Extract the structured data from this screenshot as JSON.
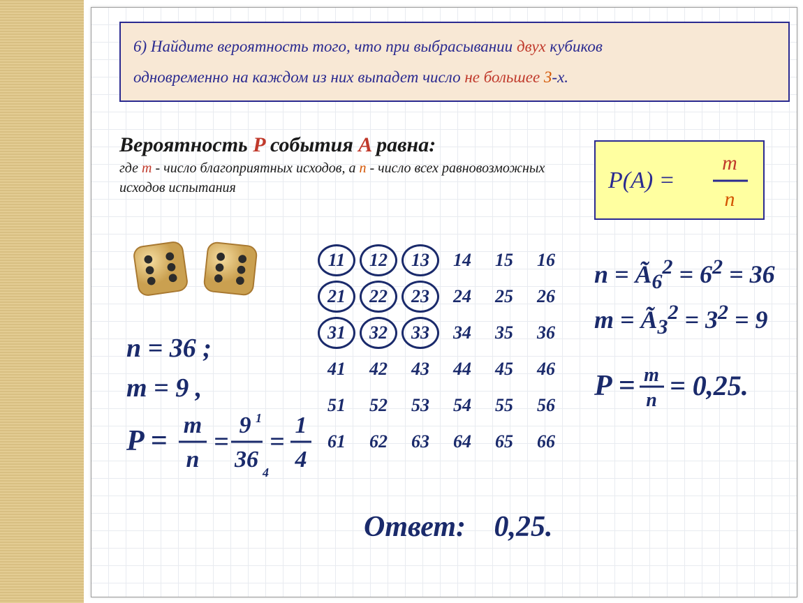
{
  "problem": {
    "number": "6)",
    "text_before_red1": "Найдите вероятность того, что при выбрасывании ",
    "red1": "двух",
    "text_after_red1": " кубиков",
    "line2_before": "одновременно на каждом из них выпадет число ",
    "red2": "не большее",
    "orange": " 3",
    "after_orange": "-х."
  },
  "theory": {
    "line1_a": "Вероятность ",
    "line1_p": "P",
    "line1_b": " события ",
    "line1_aa": "A",
    "line1_c": " равна:",
    "sub_a": "где ",
    "sub_m": "m",
    "sub_b": " - число благоприятных исходов, а ",
    "sub_n": "n",
    "sub_c": " - число всех равновозможных исходов испытания"
  },
  "formula": {
    "left": "P(A)  =",
    "num": "m",
    "den": "n"
  },
  "outcome_grid": {
    "rows": [
      [
        "11",
        "12",
        "13",
        "14",
        "15",
        "16"
      ],
      [
        "21",
        "22",
        "23",
        "24",
        "25",
        "26"
      ],
      [
        "31",
        "32",
        "33",
        "34",
        "35",
        "36"
      ],
      [
        "41",
        "42",
        "43",
        "44",
        "45",
        "46"
      ],
      [
        "51",
        "52",
        "53",
        "54",
        "55",
        "56"
      ],
      [
        "61",
        "62",
        "63",
        "64",
        "65",
        "66"
      ]
    ],
    "circled_coords": [
      [
        0,
        0
      ],
      [
        0,
        1
      ],
      [
        0,
        2
      ],
      [
        1,
        0
      ],
      [
        1,
        1
      ],
      [
        1,
        2
      ],
      [
        2,
        0
      ],
      [
        2,
        1
      ],
      [
        2,
        2
      ]
    ]
  },
  "left_hw": {
    "l1": "n = 36 ;",
    "l2": "m = 9 ,"
  },
  "right_hw": {
    "l1a": "n = Ã",
    "l1b": "= 6",
    "l1c": "= 36",
    "l2a": "m = Ã",
    "l2b": "= 3",
    "l2c": "= 9",
    "l3": "P = ",
    "l3_eq": " = 0,25."
  },
  "p_frac": {
    "num": "m",
    "den": "n"
  },
  "p_calc": {
    "lead": "P = ",
    "n1": "m",
    "d1": "n",
    "n2": "9",
    "d2": "36",
    "n3": "1",
    "d3": "4"
  },
  "answer": {
    "label": "Ответ:",
    "value": "0,25."
  },
  "colors": {
    "ink": "#1a2a6b",
    "problem_border": "#2a2a90",
    "problem_bg": "#f8e8d5",
    "formula_bg": "#ffffa0",
    "red": "#c0392b",
    "orange": "#d35400",
    "die_fill": "#e8c070",
    "die_shadow": "#a87830",
    "pip": "#2b2b2b"
  }
}
